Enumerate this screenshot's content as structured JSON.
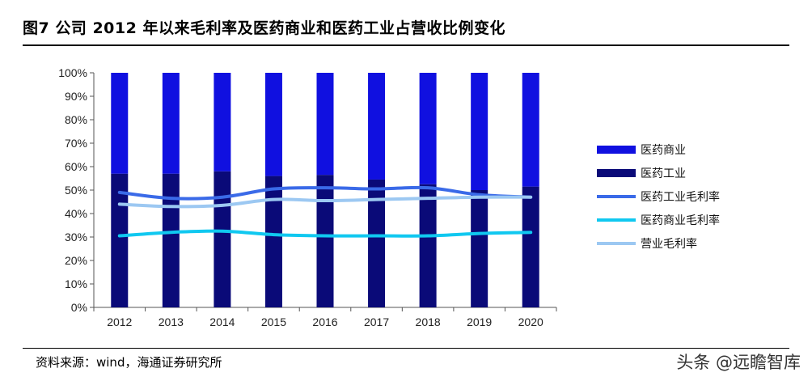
{
  "header": {
    "title": "图7  公司 2012 年以来毛利率及医药商业和医药工业占营收比例变化"
  },
  "footer": {
    "source": "资料来源：wind，海通证券研究所",
    "watermark": "头条 @远瞻智库"
  },
  "chart_data": {
    "type": "bar",
    "categories": [
      "2012",
      "2013",
      "2014",
      "2015",
      "2016",
      "2017",
      "2018",
      "2019",
      "2020"
    ],
    "yticks": [
      "0%",
      "10%",
      "20%",
      "30%",
      "40%",
      "50%",
      "60%",
      "70%",
      "80%",
      "90%",
      "100%"
    ],
    "ylim": [
      0,
      100
    ],
    "stacked": true,
    "legend_position": "right",
    "series": [
      {
        "name": "医药商业",
        "kind": "bar",
        "color": "#1010e0",
        "values": [
          43,
          43,
          42,
          44,
          43.5,
          45.5,
          47.5,
          50,
          48.5
        ]
      },
      {
        "name": "医药工业",
        "kind": "bar",
        "color": "#0a0a78",
        "values": [
          57,
          57,
          58,
          56,
          56.5,
          54.5,
          52.5,
          50,
          51.5
        ]
      },
      {
        "name": "医药工业毛利率",
        "kind": "line",
        "color": "#3a6ae8",
        "values": [
          49,
          46.5,
          47,
          50.5,
          51,
          50.5,
          51,
          48,
          47
        ]
      },
      {
        "name": "医药商业毛利率",
        "kind": "line",
        "color": "#10c8f0",
        "values": [
          30.5,
          32,
          32.5,
          31,
          30.5,
          30.5,
          30.5,
          31.5,
          32
        ]
      },
      {
        "name": "营业毛利率",
        "kind": "line",
        "color": "#9cc8f2",
        "values": [
          44,
          43,
          43.5,
          46,
          45.5,
          46,
          46.5,
          47,
          47
        ]
      }
    ]
  }
}
